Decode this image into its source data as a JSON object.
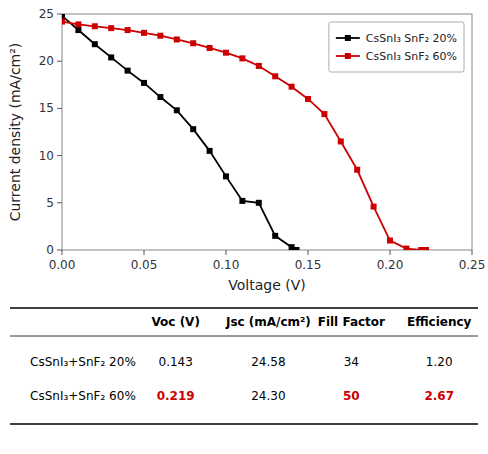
{
  "chart_data": {
    "type": "line",
    "x_label": "Voltage (V)",
    "y_label": "Current density (mA/cm²)",
    "xlim": [
      0.0,
      0.25
    ],
    "ylim": [
      0.0,
      25
    ],
    "xticks": [
      {
        "value": 0.0,
        "label": "0.00"
      },
      0.05,
      {
        "value": 0.1,
        "label": "0.10"
      },
      0.15,
      {
        "value": 0.2,
        "label": "0.20"
      },
      0.25
    ],
    "yticks": [
      0,
      5,
      10,
      15,
      20,
      25
    ],
    "grid": false,
    "legend": "upper right",
    "series": [
      {
        "name": "CsSnI₃ SnF₂ 20%",
        "color": "#000000",
        "marker": "square",
        "x": [
          0.0,
          0.01,
          0.02,
          0.03,
          0.04,
          0.05,
          0.06,
          0.07,
          0.08,
          0.09,
          0.1,
          0.11,
          0.12,
          0.13,
          0.14,
          0.143
        ],
        "values": [
          24.8,
          23.3,
          21.8,
          20.4,
          19.0,
          17.7,
          16.2,
          14.8,
          12.8,
          10.5,
          7.8,
          5.2,
          5.0,
          1.5,
          0.3,
          0.0
        ]
      },
      {
        "name": "CsSnI₃ SnF₂ 60%",
        "color": "#cc0000",
        "marker": "square",
        "x": [
          0.0,
          0.01,
          0.02,
          0.03,
          0.04,
          0.05,
          0.06,
          0.07,
          0.08,
          0.09,
          0.1,
          0.11,
          0.12,
          0.13,
          0.14,
          0.15,
          0.16,
          0.17,
          0.18,
          0.19,
          0.2,
          0.21,
          0.219,
          0.222
        ],
        "values": [
          24.2,
          23.9,
          23.7,
          23.5,
          23.3,
          23.0,
          22.7,
          22.3,
          21.9,
          21.4,
          20.9,
          20.3,
          19.5,
          18.4,
          17.3,
          16.0,
          14.4,
          11.5,
          8.5,
          4.6,
          1.0,
          0.15,
          0.0,
          0.0
        ]
      }
    ],
    "table": {
      "columns": [
        "Voc (V)",
        "Jsc (mA/cm²)",
        "Fill Factor",
        "Efficiency"
      ],
      "rows": [
        {
          "label": "CsSnI₃+SnF₂ 20%",
          "cells": [
            {
              "text": "0.143"
            },
            {
              "text": "24.58"
            },
            {
              "text": "34"
            },
            {
              "text": "1.20"
            }
          ]
        },
        {
          "label": "CsSnI₃+SnF₂ 60%",
          "cells": [
            {
              "text": "0.219",
              "color": "#cc0000"
            },
            {
              "text": "24.30"
            },
            {
              "text": "50",
              "color": "#cc0000"
            },
            {
              "text": "2.67",
              "color": "#cc0000"
            }
          ]
        }
      ]
    }
  }
}
